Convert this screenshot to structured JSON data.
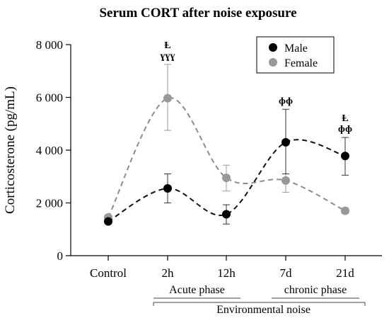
{
  "chart_data": {
    "type": "line",
    "title": "Serum CORT after noise exposure",
    "ylabel": "Corticosterone (pg/mL)",
    "ylim": [
      0,
      8000
    ],
    "yticks": [
      0,
      2000,
      4000,
      6000,
      8000
    ],
    "ytick_labels": [
      "0",
      "2 000",
      "4 000",
      "6 000",
      "8 000"
    ],
    "categories": [
      "Control",
      "2h",
      "12h",
      "7d",
      "21d"
    ],
    "groups": [
      {
        "label": "Acute phase",
        "from": "2h",
        "to": "12h"
      },
      {
        "label": "chronic phase",
        "from": "7d",
        "to": "21d"
      }
    ],
    "outer_group": {
      "label": "Environmental noise",
      "from": "2h",
      "to": "21d"
    },
    "legend_position": "top-right",
    "series": [
      {
        "name": "Male",
        "color": "#000000",
        "values": [
          1300,
          2550,
          1570,
          4300,
          3780
        ],
        "err_upper": [
          1370,
          3100,
          1930,
          5550,
          4480
        ],
        "err_lower": [
          1230,
          2000,
          1200,
          3100,
          3050
        ]
      },
      {
        "name": "Female",
        "color": "#999999",
        "values": [
          1450,
          5970,
          2950,
          2850,
          1700
        ],
        "err_upper": [
          1520,
          7250,
          3430,
          3100,
          1800
        ],
        "err_lower": [
          1380,
          4750,
          2450,
          2400,
          1600
        ]
      }
    ],
    "annotations": [
      {
        "category": "2h",
        "lines": [
          "Ⱡ",
          "ɣɣɣ"
        ]
      },
      {
        "category": "7d",
        "lines": [
          "ɸɸ"
        ]
      },
      {
        "category": "21d",
        "lines": [
          "Ⱡ",
          "ɸɸ"
        ]
      }
    ]
  }
}
